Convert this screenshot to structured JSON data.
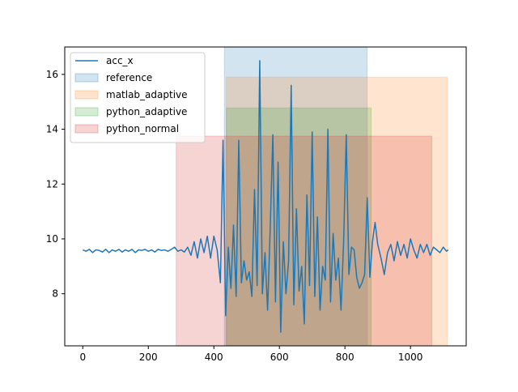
{
  "chart_data": {
    "type": "line",
    "title": "",
    "xlabel": "",
    "ylabel": "",
    "xlim": [
      -55,
      1170
    ],
    "ylim": [
      6.1,
      17.0
    ],
    "xticks": [
      0,
      200,
      400,
      600,
      800,
      1000
    ],
    "yticks": [
      8,
      10,
      12,
      14,
      16
    ],
    "grid": false,
    "legend": "top-left",
    "series": [
      {
        "name": "acc_x",
        "color": "#1f77b4",
        "x": [
          0,
          10,
          20,
          30,
          40,
          50,
          60,
          70,
          80,
          90,
          100,
          110,
          120,
          130,
          140,
          150,
          160,
          170,
          180,
          190,
          200,
          210,
          220,
          230,
          240,
          250,
          260,
          270,
          280,
          290,
          300,
          310,
          320,
          330,
          340,
          350,
          360,
          370,
          380,
          390,
          400,
          410,
          420,
          428,
          436,
          444,
          452,
          460,
          468,
          476,
          484,
          492,
          500,
          508,
          516,
          524,
          532,
          540,
          548,
          556,
          564,
          572,
          580,
          588,
          596,
          604,
          612,
          620,
          628,
          636,
          644,
          652,
          660,
          668,
          676,
          684,
          692,
          700,
          708,
          716,
          724,
          732,
          740,
          748,
          756,
          764,
          772,
          780,
          788,
          796,
          804,
          812,
          820,
          828,
          836,
          844,
          852,
          860,
          868,
          876,
          884,
          892,
          900,
          910,
          920,
          930,
          940,
          950,
          960,
          970,
          980,
          990,
          1000,
          1010,
          1020,
          1030,
          1040,
          1050,
          1060,
          1070,
          1080,
          1090,
          1100,
          1110,
          1115
        ],
        "values": [
          9.6,
          9.55,
          9.62,
          9.5,
          9.6,
          9.58,
          9.52,
          9.62,
          9.5,
          9.6,
          9.55,
          9.62,
          9.52,
          9.6,
          9.55,
          9.62,
          9.5,
          9.6,
          9.58,
          9.62,
          9.55,
          9.6,
          9.52,
          9.62,
          9.58,
          9.6,
          9.55,
          9.62,
          9.7,
          9.55,
          9.6,
          9.52,
          9.7,
          9.4,
          9.9,
          9.3,
          10.0,
          9.5,
          10.1,
          9.3,
          10.1,
          9.6,
          8.4,
          13.6,
          7.2,
          9.7,
          8.2,
          10.5,
          7.9,
          13.6,
          8.4,
          9.2,
          8.5,
          8.8,
          7.9,
          11.8,
          8.3,
          16.5,
          8.0,
          9.5,
          7.4,
          10.4,
          13.8,
          7.7,
          12.8,
          6.6,
          9.9,
          8.0,
          9.2,
          15.6,
          7.6,
          11.1,
          8.1,
          9.0,
          6.9,
          11.6,
          8.3,
          13.9,
          7.9,
          10.8,
          7.4,
          9.0,
          8.5,
          14.0,
          7.7,
          10.2,
          8.5,
          9.3,
          7.4,
          9.9,
          13.8,
          8.7,
          9.7,
          9.6,
          8.6,
          8.2,
          8.4,
          8.7,
          11.5,
          8.6,
          9.9,
          10.6,
          9.8,
          9.3,
          8.7,
          9.5,
          9.8,
          9.2,
          9.9,
          9.4,
          9.8,
          9.3,
          10.0,
          9.6,
          9.3,
          9.8,
          9.5,
          9.8,
          9.4,
          9.7,
          9.6,
          9.5,
          9.7,
          9.55,
          9.6
        ]
      }
    ],
    "spans": [
      {
        "name": "reference",
        "color": "#1f77b4",
        "x0": 432,
        "x1": 868,
        "y0": 6.1,
        "y1": 17.0
      },
      {
        "name": "matlab_adaptive",
        "color": "#ff7f0e",
        "x0": 438,
        "x1": 1112,
        "y0": 6.1,
        "y1": 15.9
      },
      {
        "name": "python_adaptive",
        "color": "#2ca02c",
        "x0": 438,
        "x1": 880,
        "y0": 6.1,
        "y1": 14.78
      },
      {
        "name": "python_normal",
        "color": "#d62728",
        "x0": 285,
        "x1": 1065,
        "y0": 6.1,
        "y1": 13.75
      }
    ],
    "legend_entries": [
      "acc_x",
      "reference",
      "matlab_adaptive",
      "python_adaptive",
      "python_normal"
    ]
  }
}
